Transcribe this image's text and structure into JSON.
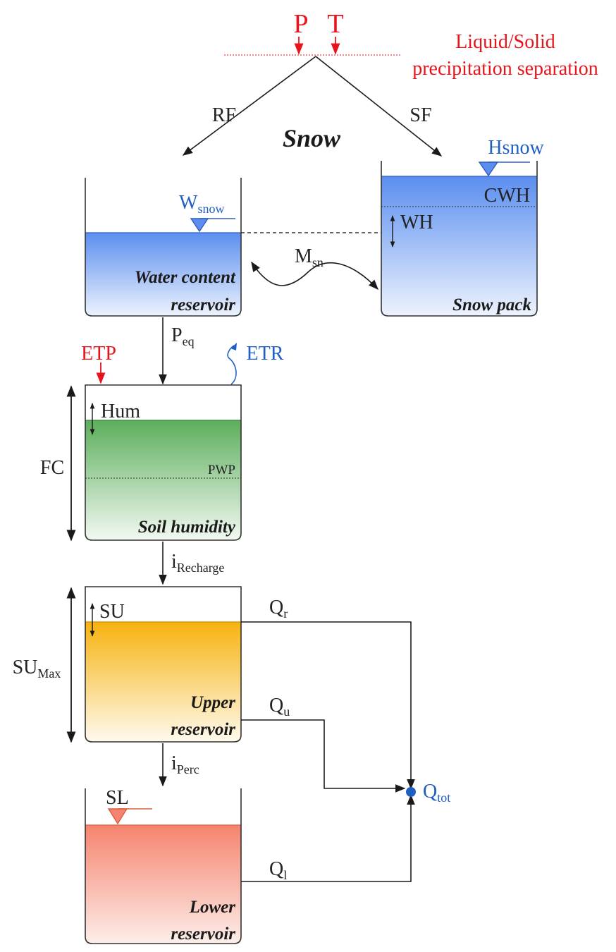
{
  "top": {
    "precip_label": "P",
    "temp_label": "T",
    "separation_line1": "Liquid/Solid",
    "separation_line2": "precipitation separation",
    "rain_label": "RF",
    "snow_fall_label": "SF",
    "module_title": "Snow"
  },
  "water_content": {
    "level_label": "W",
    "level_sub": "snow",
    "title_line1": "Water content",
    "title_line2": "reservoir"
  },
  "snow_pack": {
    "level_label": "Hsnow",
    "cwh_label": "CWH",
    "wh_label": "WH",
    "title": "Snow pack"
  },
  "melt": {
    "label": "M",
    "sub": "sn"
  },
  "peq": {
    "label": "P",
    "sub": "eq"
  },
  "etp_label": "ETP",
  "etr_label": "ETR",
  "soil": {
    "hum_label": "Hum",
    "pwp_label": "PWP",
    "fc_label": "FC",
    "title": "Soil humidity"
  },
  "recharge": {
    "label": "i",
    "sub": "Recharge"
  },
  "upper": {
    "su_label": "SU",
    "sumax_label": "SU",
    "sumax_sub": "Max",
    "title_line1": "Upper",
    "title_line2": "reservoir"
  },
  "qr": {
    "label": "Q",
    "sub": "r"
  },
  "qu": {
    "label": "Q",
    "sub": "u"
  },
  "perc": {
    "label": "i",
    "sub": "Perc"
  },
  "qtot": {
    "label": "Q",
    "sub": "tot"
  },
  "lower": {
    "sl_label": "SL",
    "title_line1": "Lower",
    "title_line2": "reservoir"
  },
  "ql": {
    "label": "Q",
    "sub": "l"
  },
  "colors": {
    "water_blue": "#5b8ef0",
    "soil_green": "#5cae5c",
    "upper_orange": "#f7b20f",
    "lower_red": "#f5836e",
    "label_red": "#e8141c",
    "label_blue": "#1f5fc4"
  }
}
